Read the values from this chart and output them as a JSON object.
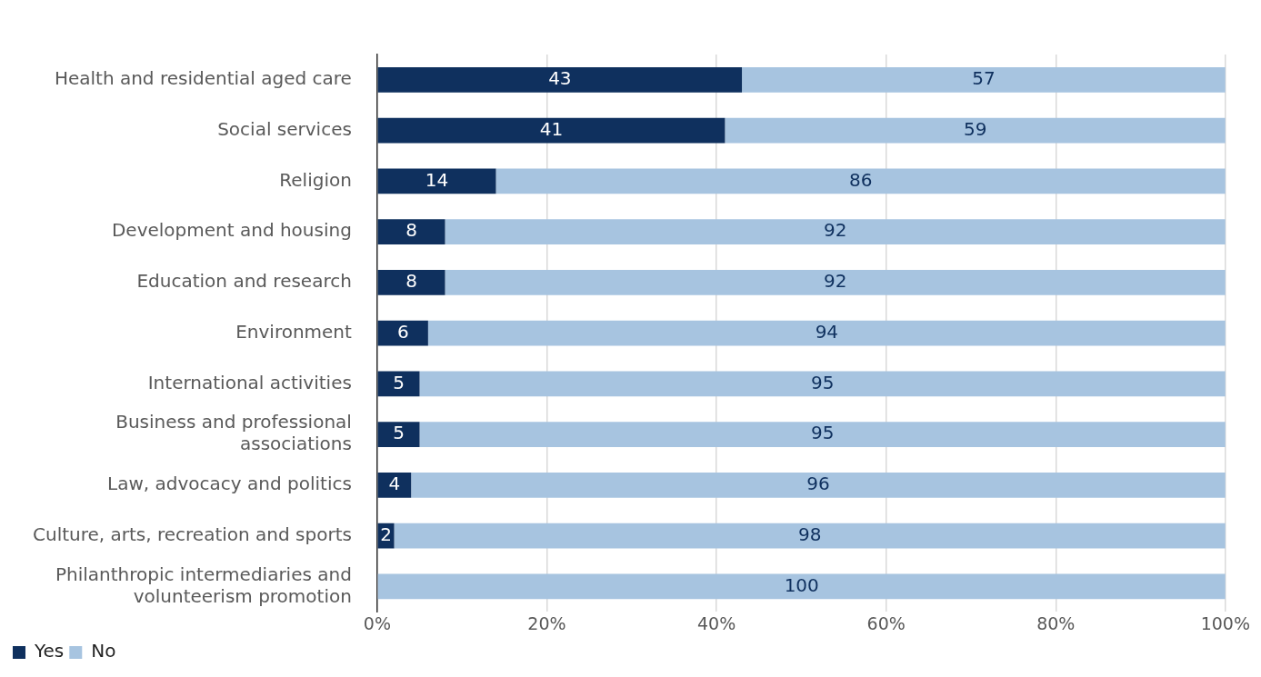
{
  "chart_data": {
    "type": "bar",
    "orientation": "horizontal",
    "stacked": true,
    "categories": [
      "Health and residential aged care",
      "Social services",
      "Religion",
      "Development and housing",
      "Education and research",
      "Environment",
      "International activities",
      "Business and professional associations",
      "Law, advocacy and politics",
      "Culture, arts, recreation and sports",
      "Philanthropic intermediaries and volunteerism promotion"
    ],
    "series": [
      {
        "name": "Yes",
        "color": "#0f305e",
        "values": [
          43,
          41,
          14,
          8,
          8,
          6,
          5,
          5,
          4,
          2,
          0
        ],
        "value_labels": [
          "43",
          "41",
          "14",
          "8",
          "8",
          "6",
          "5",
          "5",
          "4",
          "2",
          null
        ]
      },
      {
        "name": "No",
        "color": "#a7c4e0",
        "values": [
          57,
          59,
          86,
          92,
          92,
          94,
          95,
          95,
          96,
          98,
          100
        ],
        "value_labels": [
          "57",
          "59",
          "86",
          "92",
          "92",
          "94",
          "95",
          "95",
          "96",
          "98",
          "100"
        ]
      }
    ],
    "xlim": [
      0,
      100
    ],
    "xticks": [
      {
        "value": 0,
        "label": "0%"
      },
      {
        "value": 20,
        "label": "20%"
      },
      {
        "value": 40,
        "label": "40%"
      },
      {
        "value": 60,
        "label": "60%"
      },
      {
        "value": 80,
        "label": "80%"
      },
      {
        "value": 100,
        "label": "100%"
      }
    ],
    "grid": "x",
    "legend": "bottom left"
  }
}
